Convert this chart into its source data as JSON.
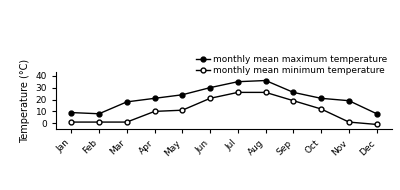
{
  "months": [
    "Jan",
    "Feb",
    "Mar",
    "Apr",
    "May",
    "Jun",
    "Jul",
    "Aug",
    "Sep",
    "Oct",
    "Nov",
    "Dec"
  ],
  "max_temp": [
    9,
    8,
    18,
    21,
    24,
    30,
    35,
    36,
    26,
    21,
    19,
    8
  ],
  "min_temp": [
    1,
    1,
    1,
    10,
    11,
    21,
    26,
    26,
    19,
    12,
    1,
    -1
  ],
  "ylabel": "Temperature (°C)",
  "legend_max": "monthly mean maximum temperature",
  "legend_min": "monthly mean minimum temperature",
  "ylim": [
    -5,
    43
  ],
  "yticks": [
    0,
    10,
    20,
    30,
    40
  ],
  "line_color": "#555555",
  "bg_color": "#ffffff"
}
